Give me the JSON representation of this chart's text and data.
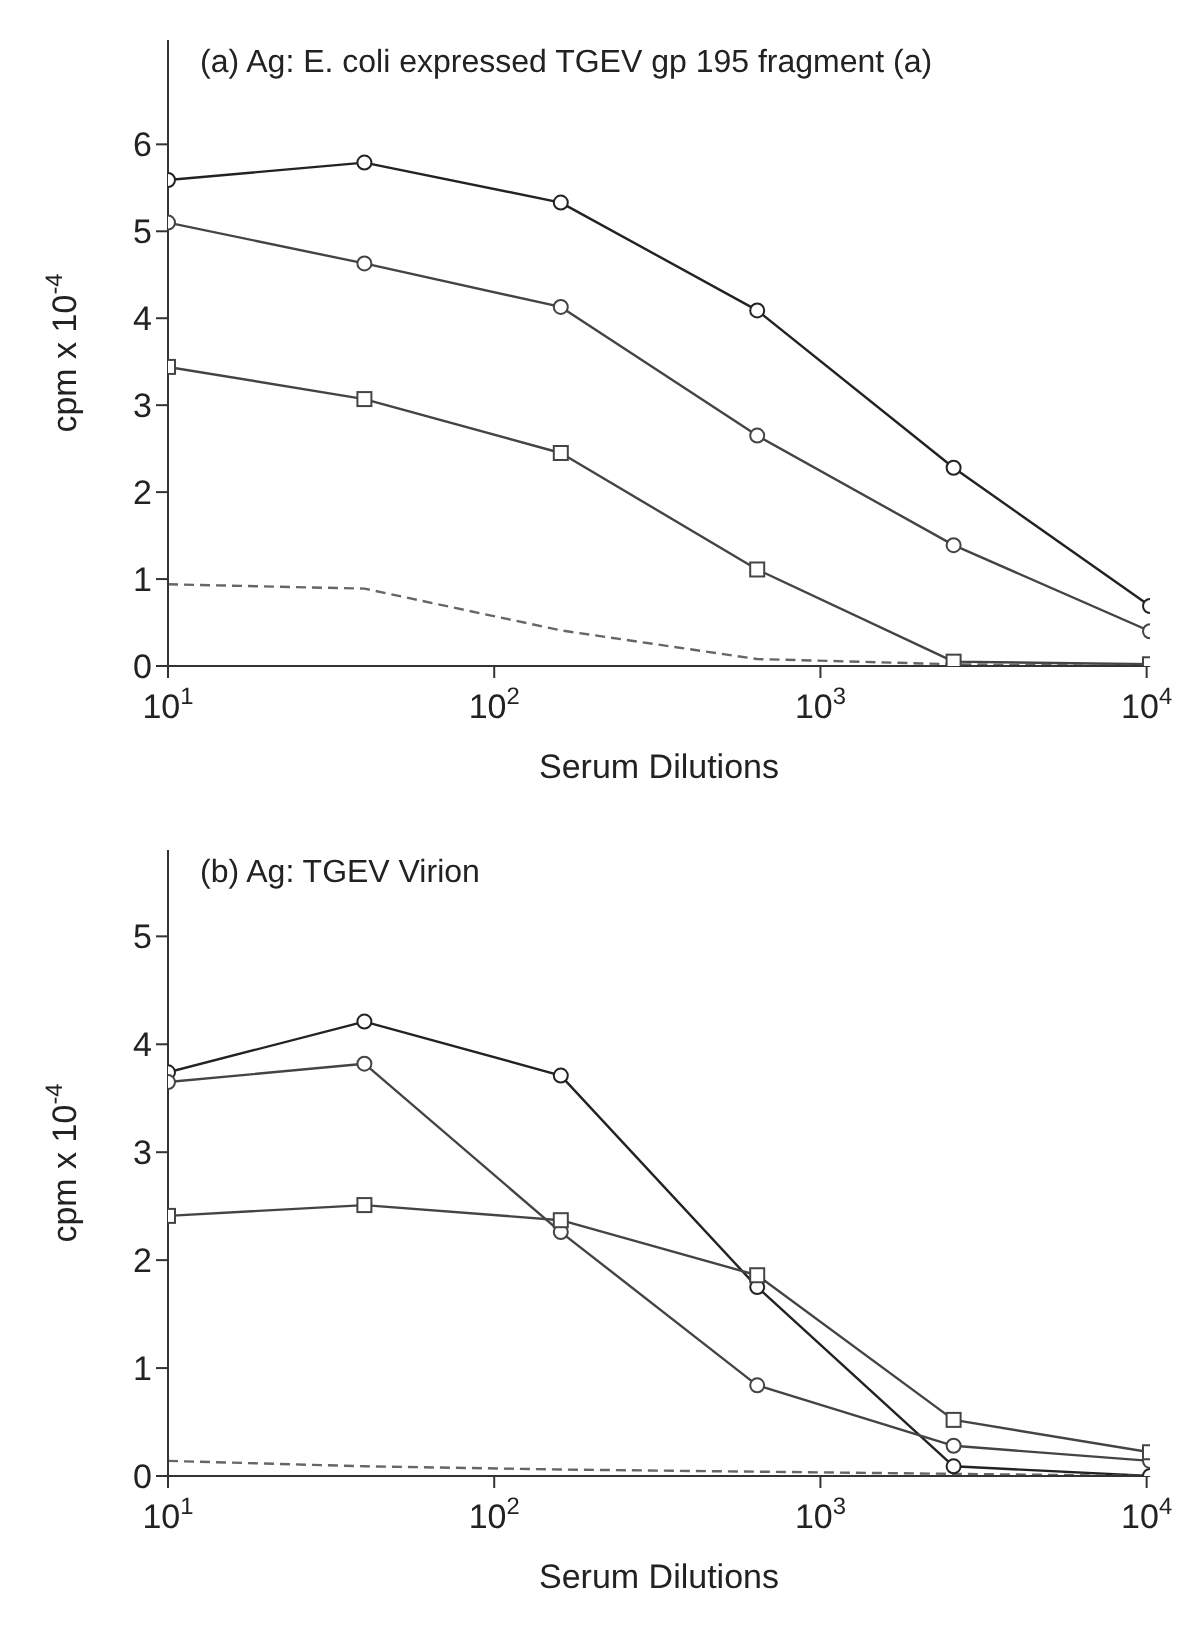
{
  "chart_data": [
    {
      "type": "line",
      "title": "(a) Ag: E. coli expressed TGEV gp 195 fragment (a)",
      "xlabel": "Serum Dilutions",
      "ylabel": "cpm x 10$^{-4}$",
      "log": "x",
      "x": [
        10,
        40,
        160,
        640,
        2560,
        10240
      ],
      "xlim": [
        10,
        10240
      ],
      "ylim": [
        0,
        7.2
      ],
      "xticks": [
        {
          "value": 10,
          "label": "10$^{1}$"
        },
        {
          "value": 100,
          "label": "10$^{2}$"
        },
        {
          "value": 1000,
          "label": "10$^{3}$"
        },
        {
          "value": 10000,
          "label": "10$^{4}$"
        }
      ],
      "yticks": [
        0,
        1,
        2,
        3,
        4,
        5,
        6
      ],
      "grid": false,
      "legend": false,
      "series": [
        {
          "color": "#222222",
          "marker": "circle",
          "line_style": "solid",
          "values": [
            5.59,
            5.79,
            5.33,
            4.09,
            2.28,
            0.69
          ]
        },
        {
          "color": "#444444",
          "marker": "circle",
          "line_style": "solid",
          "values": [
            5.1,
            4.63,
            4.13,
            2.65,
            1.39,
            0.4
          ]
        },
        {
          "color": "#444444",
          "marker": "square",
          "line_style": "solid",
          "values": [
            3.44,
            3.07,
            2.45,
            1.11,
            0.05,
            0.02
          ]
        },
        {
          "color": "#666666",
          "marker": "none",
          "line_style": "dashed",
          "values": [
            0.94,
            0.89,
            0.41,
            0.08,
            0.02,
            0.0
          ]
        }
      ]
    },
    {
      "type": "line",
      "title": "(b) Ag: TGEV Virion",
      "xlabel": "Serum Dilutions",
      "ylabel": "cpm x 10$^{-4}$",
      "log": "x",
      "x": [
        10,
        40,
        160,
        640,
        2560,
        10240
      ],
      "xlim": [
        10,
        10240
      ],
      "ylim": [
        0,
        5.8
      ],
      "xticks": [
        {
          "value": 10,
          "label": "10$^{1}$"
        },
        {
          "value": 100,
          "label": "10$^{2}$"
        },
        {
          "value": 1000,
          "label": "10$^{3}$"
        },
        {
          "value": 10000,
          "label": "10$^{4}$"
        }
      ],
      "yticks": [
        0,
        1,
        2,
        3,
        4,
        5
      ],
      "grid": false,
      "legend": false,
      "series": [
        {
          "color": "#222222",
          "marker": "circle",
          "line_style": "solid",
          "values": [
            3.74,
            4.21,
            3.71,
            1.75,
            0.09,
            0.0
          ]
        },
        {
          "color": "#444444",
          "marker": "circle",
          "line_style": "solid",
          "values": [
            3.65,
            3.82,
            2.26,
            0.84,
            0.28,
            0.14
          ]
        },
        {
          "color": "#444444",
          "marker": "square",
          "line_style": "solid",
          "values": [
            2.41,
            2.51,
            2.37,
            1.86,
            0.52,
            0.22
          ]
        },
        {
          "color": "#666666",
          "marker": "none",
          "line_style": "dashed",
          "values": [
            0.14,
            0.09,
            0.06,
            0.04,
            0.02,
            0.0
          ]
        }
      ]
    }
  ]
}
